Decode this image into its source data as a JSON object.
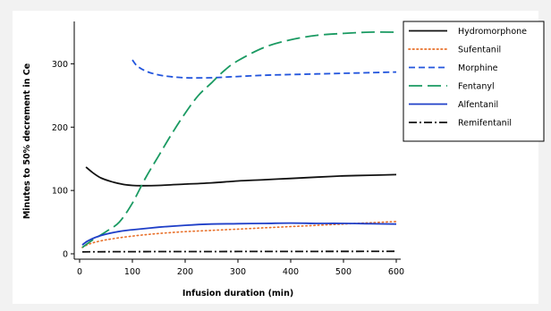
{
  "chart_data": {
    "type": "line",
    "title": "",
    "xlabel": "Infusion duration (min)",
    "ylabel": "Minutes to 50% decrement in Ce",
    "xlim": [
      0,
      600
    ],
    "ylim": [
      0,
      360
    ],
    "xticks": [
      0,
      100,
      200,
      300,
      400,
      500,
      600
    ],
    "yticks": [
      0,
      100,
      200,
      300
    ],
    "grid": false,
    "legend_position": "top-right",
    "series": [
      {
        "name": "Hydromorphone",
        "color": "#111111",
        "dash": "solid",
        "x": [
          12,
          25,
          40,
          60,
          80,
          100,
          120,
          150,
          200,
          250,
          300,
          350,
          400,
          450,
          500,
          550,
          600
        ],
        "y": [
          137,
          128,
          120,
          114,
          110,
          108,
          107.5,
          108,
          110,
          112,
          115,
          117,
          119,
          121,
          123,
          124,
          125
        ]
      },
      {
        "name": "Sufentanil",
        "color": "#e8702a",
        "dash": "dot",
        "x": [
          5,
          20,
          50,
          100,
          150,
          200,
          250,
          300,
          350,
          400,
          450,
          500,
          550,
          600
        ],
        "y": [
          10,
          16,
          22,
          28,
          32,
          35,
          37,
          39,
          41,
          43,
          45,
          47,
          49,
          51
        ]
      },
      {
        "name": "Morphine",
        "color": "#2255dd",
        "dash": "dash",
        "x": [
          100,
          110,
          130,
          160,
          200,
          250,
          300,
          350,
          400,
          450,
          500,
          550,
          600
        ],
        "y": [
          306,
          296,
          287,
          281,
          278,
          278,
          280,
          282,
          283,
          284,
          285,
          286,
          287
        ]
      },
      {
        "name": "Fentanyl",
        "color": "#1a9a62",
        "dash": "longdash",
        "x": [
          5,
          25,
          50,
          75,
          100,
          125,
          150,
          175,
          200,
          225,
          250,
          275,
          300,
          350,
          400,
          450,
          500,
          550,
          600
        ],
        "y": [
          10,
          22,
          35,
          50,
          80,
          120,
          155,
          190,
          222,
          250,
          270,
          290,
          305,
          326,
          338,
          345,
          348,
          350,
          350
        ]
      },
      {
        "name": "Alfentanil",
        "color": "#1f3fc8",
        "dash": "solid",
        "x": [
          5,
          15,
          30,
          50,
          80,
          100,
          150,
          200,
          250,
          300,
          350,
          400,
          450,
          500,
          550,
          600
        ],
        "y": [
          14,
          20,
          26,
          31,
          36,
          38,
          42,
          45,
          47,
          47.5,
          48,
          48.5,
          48,
          48,
          47.5,
          47
        ]
      },
      {
        "name": "Remifentanil",
        "color": "#111111",
        "dash": "dashdot",
        "x": [
          5,
          50,
          100,
          150,
          200,
          300,
          400,
          500,
          600
        ],
        "y": [
          3,
          3.3,
          3.4,
          3.5,
          3.5,
          3.6,
          3.7,
          3.8,
          4
        ]
      }
    ]
  }
}
